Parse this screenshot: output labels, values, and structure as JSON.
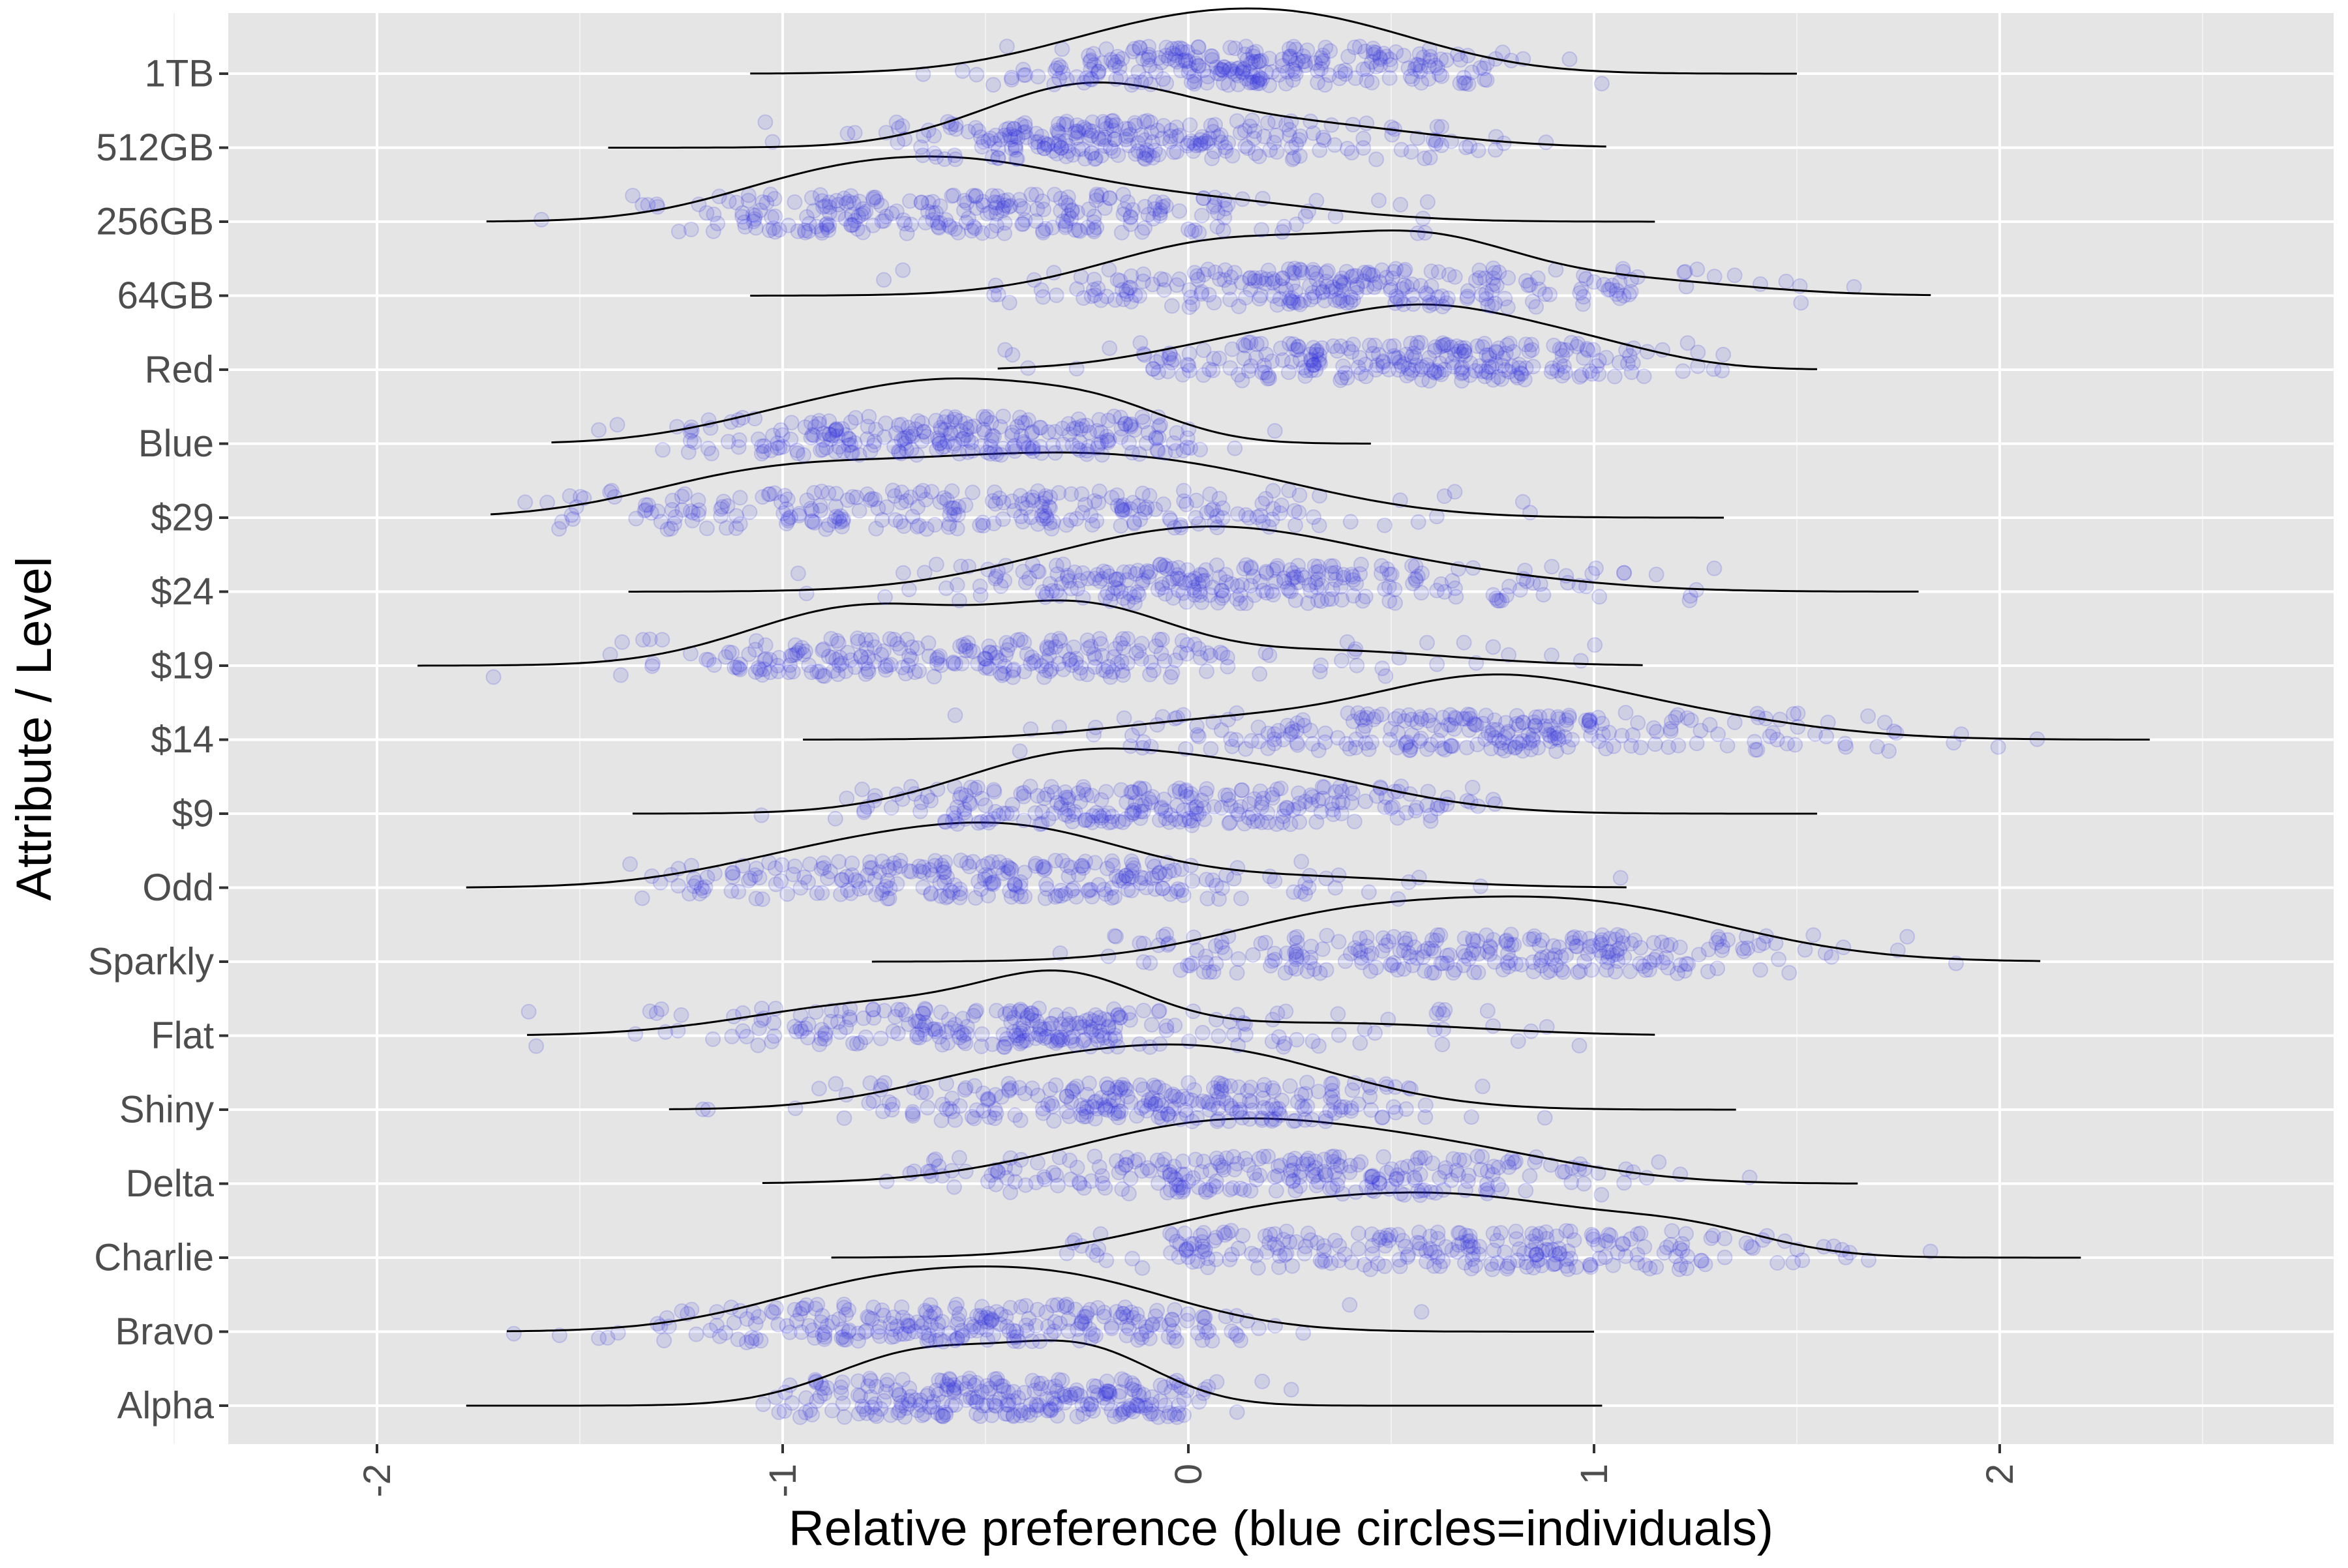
{
  "chart_data": {
    "type": "ridgeline",
    "title": "",
    "xlabel": "Relative preference (blue circles=individuals)",
    "ylabel": "Attribute / Level",
    "xlim": [
      -2.4,
      2.8
    ],
    "x_ticks": [
      -2,
      -1,
      0,
      1,
      2
    ],
    "x_tick_labels": [
      "-2",
      "-1",
      "0",
      "1",
      "2"
    ],
    "x_tick_label_rotation": "vertical",
    "grid": true,
    "background": "#e5e5e5",
    "point_color": "#3333dd",
    "density_line_color": "#000000",
    "categories": [
      "Alpha",
      "Bravo",
      "Charlie",
      "Delta",
      "Shiny",
      "Flat",
      "Sparkly",
      "Odd",
      "$9",
      "$14",
      "$19",
      "$24",
      "$29",
      "Blue",
      "Red",
      "64GB",
      "256GB",
      "512GB",
      "1TB"
    ],
    "series": [
      {
        "category": "Alpha",
        "range": [
          -1.78,
          1.02
        ],
        "modes": [
          {
            "x": -0.65,
            "sd": 0.22,
            "w": 1.0
          },
          {
            "x": -0.25,
            "sd": 0.18,
            "w": 0.95
          }
        ]
      },
      {
        "category": "Bravo",
        "range": [
          -1.68,
          1.0
        ],
        "modes": [
          {
            "x": -0.75,
            "sd": 0.3,
            "w": 1.0
          },
          {
            "x": -0.28,
            "sd": 0.28,
            "w": 0.95
          }
        ]
      },
      {
        "category": "Charlie",
        "range": [
          -0.88,
          2.2
        ],
        "modes": [
          {
            "x": 0.15,
            "sd": 0.3,
            "w": 0.6
          },
          {
            "x": 0.7,
            "sd": 0.35,
            "w": 1.0
          },
          {
            "x": 1.25,
            "sd": 0.2,
            "w": 0.35
          }
        ]
      },
      {
        "category": "Delta",
        "range": [
          -1.05,
          1.65
        ],
        "modes": [
          {
            "x": 0.1,
            "sd": 0.38,
            "w": 1.0
          },
          {
            "x": 0.7,
            "sd": 0.3,
            "w": 0.35
          }
        ]
      },
      {
        "category": "Shiny",
        "range": [
          -1.28,
          1.35
        ],
        "modes": [
          {
            "x": -0.45,
            "sd": 0.28,
            "w": 0.5
          },
          {
            "x": 0.05,
            "sd": 0.32,
            "w": 1.0
          }
        ]
      },
      {
        "category": "Flat",
        "range": [
          -1.63,
          1.15
        ],
        "modes": [
          {
            "x": -0.75,
            "sd": 0.32,
            "w": 0.65
          },
          {
            "x": -0.3,
            "sd": 0.2,
            "w": 1.0
          },
          {
            "x": 0.35,
            "sd": 0.35,
            "w": 0.25
          }
        ]
      },
      {
        "category": "Sparkly",
        "range": [
          -0.78,
          2.1
        ],
        "modes": [
          {
            "x": 0.35,
            "sd": 0.3,
            "w": 0.6
          },
          {
            "x": 0.95,
            "sd": 0.38,
            "w": 1.0
          }
        ]
      },
      {
        "category": "Odd",
        "range": [
          -1.78,
          1.08
        ],
        "modes": [
          {
            "x": -0.85,
            "sd": 0.3,
            "w": 0.7
          },
          {
            "x": -0.4,
            "sd": 0.28,
            "w": 1.0
          },
          {
            "x": 0.3,
            "sd": 0.3,
            "w": 0.2
          }
        ]
      },
      {
        "category": "$9",
        "range": [
          -1.37,
          1.55
        ],
        "modes": [
          {
            "x": -0.3,
            "sd": 0.28,
            "w": 1.0
          },
          {
            "x": 0.2,
            "sd": 0.3,
            "w": 0.7
          }
        ]
      },
      {
        "category": "$14",
        "range": [
          -0.95,
          2.37
        ],
        "modes": [
          {
            "x": 0.1,
            "sd": 0.3,
            "w": 0.4
          },
          {
            "x": 0.7,
            "sd": 0.28,
            "w": 1.0
          },
          {
            "x": 1.1,
            "sd": 0.35,
            "w": 0.6
          }
        ]
      },
      {
        "category": "$19",
        "range": [
          -1.9,
          1.12
        ],
        "modes": [
          {
            "x": -0.8,
            "sd": 0.28,
            "w": 1.0
          },
          {
            "x": -0.25,
            "sd": 0.22,
            "w": 0.9
          },
          {
            "x": 0.35,
            "sd": 0.3,
            "w": 0.25
          }
        ]
      },
      {
        "category": "$24",
        "range": [
          -1.38,
          1.8
        ],
        "modes": [
          {
            "x": -0.25,
            "sd": 0.3,
            "w": 0.55
          },
          {
            "x": 0.1,
            "sd": 0.3,
            "w": 1.0
          },
          {
            "x": 0.55,
            "sd": 0.35,
            "w": 0.45
          }
        ]
      },
      {
        "category": "$29",
        "range": [
          -1.72,
          1.32
        ],
        "modes": [
          {
            "x": -1.05,
            "sd": 0.3,
            "w": 0.8
          },
          {
            "x": -0.45,
            "sd": 0.35,
            "w": 1.0
          },
          {
            "x": 0.05,
            "sd": 0.32,
            "w": 0.7
          }
        ]
      },
      {
        "category": "Blue",
        "range": [
          -1.57,
          0.45
        ],
        "modes": [
          {
            "x": -0.95,
            "sd": 0.25,
            "w": 0.5
          },
          {
            "x": -0.55,
            "sd": 0.25,
            "w": 1.0
          },
          {
            "x": -0.2,
            "sd": 0.18,
            "w": 0.5
          }
        ]
      },
      {
        "category": "Red",
        "range": [
          -0.47,
          1.55
        ],
        "modes": [
          {
            "x": 0.15,
            "sd": 0.25,
            "w": 0.45
          },
          {
            "x": 0.6,
            "sd": 0.25,
            "w": 1.0
          },
          {
            "x": 1.0,
            "sd": 0.2,
            "w": 0.3
          }
        ]
      },
      {
        "category": "64GB",
        "range": [
          -1.08,
          1.83
        ],
        "modes": [
          {
            "x": 0.1,
            "sd": 0.3,
            "w": 1.0
          },
          {
            "x": 0.6,
            "sd": 0.22,
            "w": 0.8
          },
          {
            "x": 1.05,
            "sd": 0.3,
            "w": 0.3
          }
        ]
      },
      {
        "category": "256GB",
        "range": [
          -1.73,
          1.15
        ],
        "modes": [
          {
            "x": -0.95,
            "sd": 0.25,
            "w": 0.5
          },
          {
            "x": -0.55,
            "sd": 0.3,
            "w": 1.0
          },
          {
            "x": 0.05,
            "sd": 0.3,
            "w": 0.35
          }
        ]
      },
      {
        "category": "512GB",
        "range": [
          -1.43,
          1.03
        ],
        "modes": [
          {
            "x": -0.25,
            "sd": 0.26,
            "w": 1.0
          },
          {
            "x": 0.3,
            "sd": 0.3,
            "w": 0.35
          }
        ]
      },
      {
        "category": "1TB",
        "range": [
          -1.08,
          1.5
        ],
        "modes": [
          {
            "x": -0.05,
            "sd": 0.3,
            "w": 0.9
          },
          {
            "x": 0.35,
            "sd": 0.28,
            "w": 0.8
          }
        ]
      }
    ]
  }
}
